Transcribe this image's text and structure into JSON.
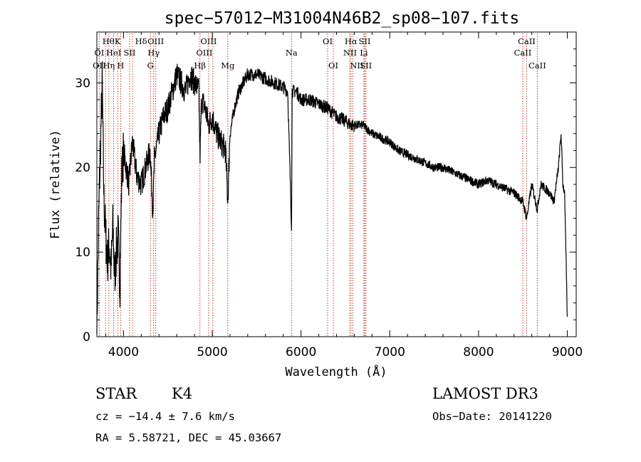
{
  "chart_data": {
    "type": "line",
    "title": "spec−57012−M31004N46B2_sp08−107.fits",
    "xlabel": "Wavelength (Å)",
    "ylabel": "Flux (relative)",
    "xlim": [
      3700,
      9100
    ],
    "ylim": [
      0,
      36
    ],
    "xticks": [
      4000,
      5000,
      6000,
      7000,
      8000,
      9000
    ],
    "yticks": [
      0,
      10,
      20,
      30
    ],
    "grid": false,
    "line_color": "#000000",
    "marker_color": "#c0392b",
    "spectrum": {
      "x": [
        3700,
        3720,
        3740,
        3760,
        3780,
        3800,
        3820,
        3840,
        3860,
        3880,
        3900,
        3920,
        3940,
        3960,
        3980,
        4000,
        4030,
        4060,
        4100,
        4150,
        4200,
        4250,
        4300,
        4330,
        4350,
        4400,
        4450,
        4500,
        4550,
        4600,
        4650,
        4700,
        4750,
        4800,
        4850,
        4861,
        4880,
        4920,
        4960,
        5000,
        5050,
        5100,
        5150,
        5175,
        5200,
        5250,
        5300,
        5400,
        5500,
        5600,
        5700,
        5800,
        5850,
        5893,
        5900,
        5950,
        6000,
        6100,
        6200,
        6300,
        6400,
        6500,
        6563,
        6600,
        6700,
        6800,
        6900,
        7000,
        7100,
        7200,
        7300,
        7400,
        7500,
        7600,
        7700,
        7800,
        7900,
        8000,
        8100,
        8200,
        8300,
        8400,
        8498,
        8542,
        8600,
        8662,
        8700,
        8800,
        8850,
        8900,
        8930,
        8950,
        8970,
        9000
      ],
      "y": [
        0.5,
        14,
        22,
        30,
        16,
        12,
        9,
        11,
        8,
        13,
        7,
        10,
        12,
        6,
        19,
        22,
        20,
        18,
        23,
        19,
        18,
        20,
        22,
        15,
        21,
        24,
        26,
        27,
        29,
        31,
        30,
        29,
        31,
        30,
        29,
        21,
        28,
        27,
        25,
        26,
        24,
        23,
        22,
        16,
        24,
        27,
        29,
        31,
        31,
        30.5,
        30,
        29.5,
        29,
        13,
        29,
        29,
        28,
        28,
        27.5,
        27,
        26,
        25.5,
        25,
        25,
        25,
        24,
        23.5,
        23,
        22,
        21.5,
        21,
        20.5,
        20,
        20,
        19.5,
        19,
        18.5,
        18,
        18.5,
        18,
        17.5,
        17,
        16,
        14,
        18,
        15,
        18,
        17,
        16,
        20,
        24,
        18,
        17,
        2
      ]
    },
    "lines": [
      {
        "name": "Hθ",
        "x": 3798,
        "row": 1,
        "dx": 4
      },
      {
        "name": "K",
        "x": 3934,
        "row": 1
      },
      {
        "name": "Hδ",
        "x": 4102,
        "row": 1,
        "dx": 12
      },
      {
        "name": "OIII",
        "x": 4363,
        "row": 1
      },
      {
        "name": "OIII",
        "x": 4959,
        "row": 1
      },
      {
        "name": "OI",
        "x": 6300,
        "row": 1
      },
      {
        "name": "Hα",
        "x": 6563,
        "row": 1
      },
      {
        "name": "SII",
        "x": 6717,
        "row": 1
      },
      {
        "name": "CaII",
        "x": 8542,
        "row": 1
      },
      {
        "name": "OI",
        "x": 3727,
        "row": 2
      },
      {
        "name": "HeI",
        "x": 3889,
        "row": 2
      },
      {
        "name": "SII",
        "x": 4069,
        "row": 2
      },
      {
        "name": "Hγ",
        "x": 4340,
        "row": 2
      },
      {
        "name": "OIII",
        "x": 4959,
        "row": 2,
        "dx": -6
      },
      {
        "name": "Na",
        "x": 5893,
        "row": 2
      },
      {
        "name": "NII",
        "x": 6584,
        "row": 2,
        "dx": -4
      },
      {
        "name": "Li",
        "x": 6708,
        "row": 2
      },
      {
        "name": "CaII",
        "x": 8498,
        "row": 2
      },
      {
        "name": "OII",
        "x": 3727,
        "row": 3
      },
      {
        "name": "Hη",
        "x": 3835,
        "row": 3
      },
      {
        "name": "H",
        "x": 3968,
        "row": 3
      },
      {
        "name": "G",
        "x": 4304,
        "row": 3
      },
      {
        "name": "Hβ",
        "x": 4861,
        "row": 3
      },
      {
        "name": "Mg",
        "x": 5175,
        "row": 3
      },
      {
        "name": "OI",
        "x": 6364,
        "row": 3
      },
      {
        "name": "NII",
        "x": 6548,
        "row": 3,
        "dx": 10
      },
      {
        "name": "SII",
        "x": 6731,
        "row": 3
      },
      {
        "name": "CaII",
        "x": 8662,
        "row": 3
      }
    ],
    "marker_x": [
      3727,
      3798,
      3835,
      3889,
      3934,
      3968,
      4069,
      4102,
      4304,
      4340,
      4363,
      4861,
      4959,
      5007,
      5175,
      5893,
      6300,
      6364,
      6548,
      6563,
      6584,
      6708,
      6717,
      6731,
      8498,
      8542,
      8662
    ]
  },
  "info": {
    "class_label": "STAR",
    "subclass": "K4",
    "survey": "LAMOST DR3",
    "cz": "cz = −14.4 ± 7.6 km/s",
    "obs_date": "Obs−Date: 20141220",
    "radec": "RA =   5.58721, DEC =  45.03667"
  }
}
